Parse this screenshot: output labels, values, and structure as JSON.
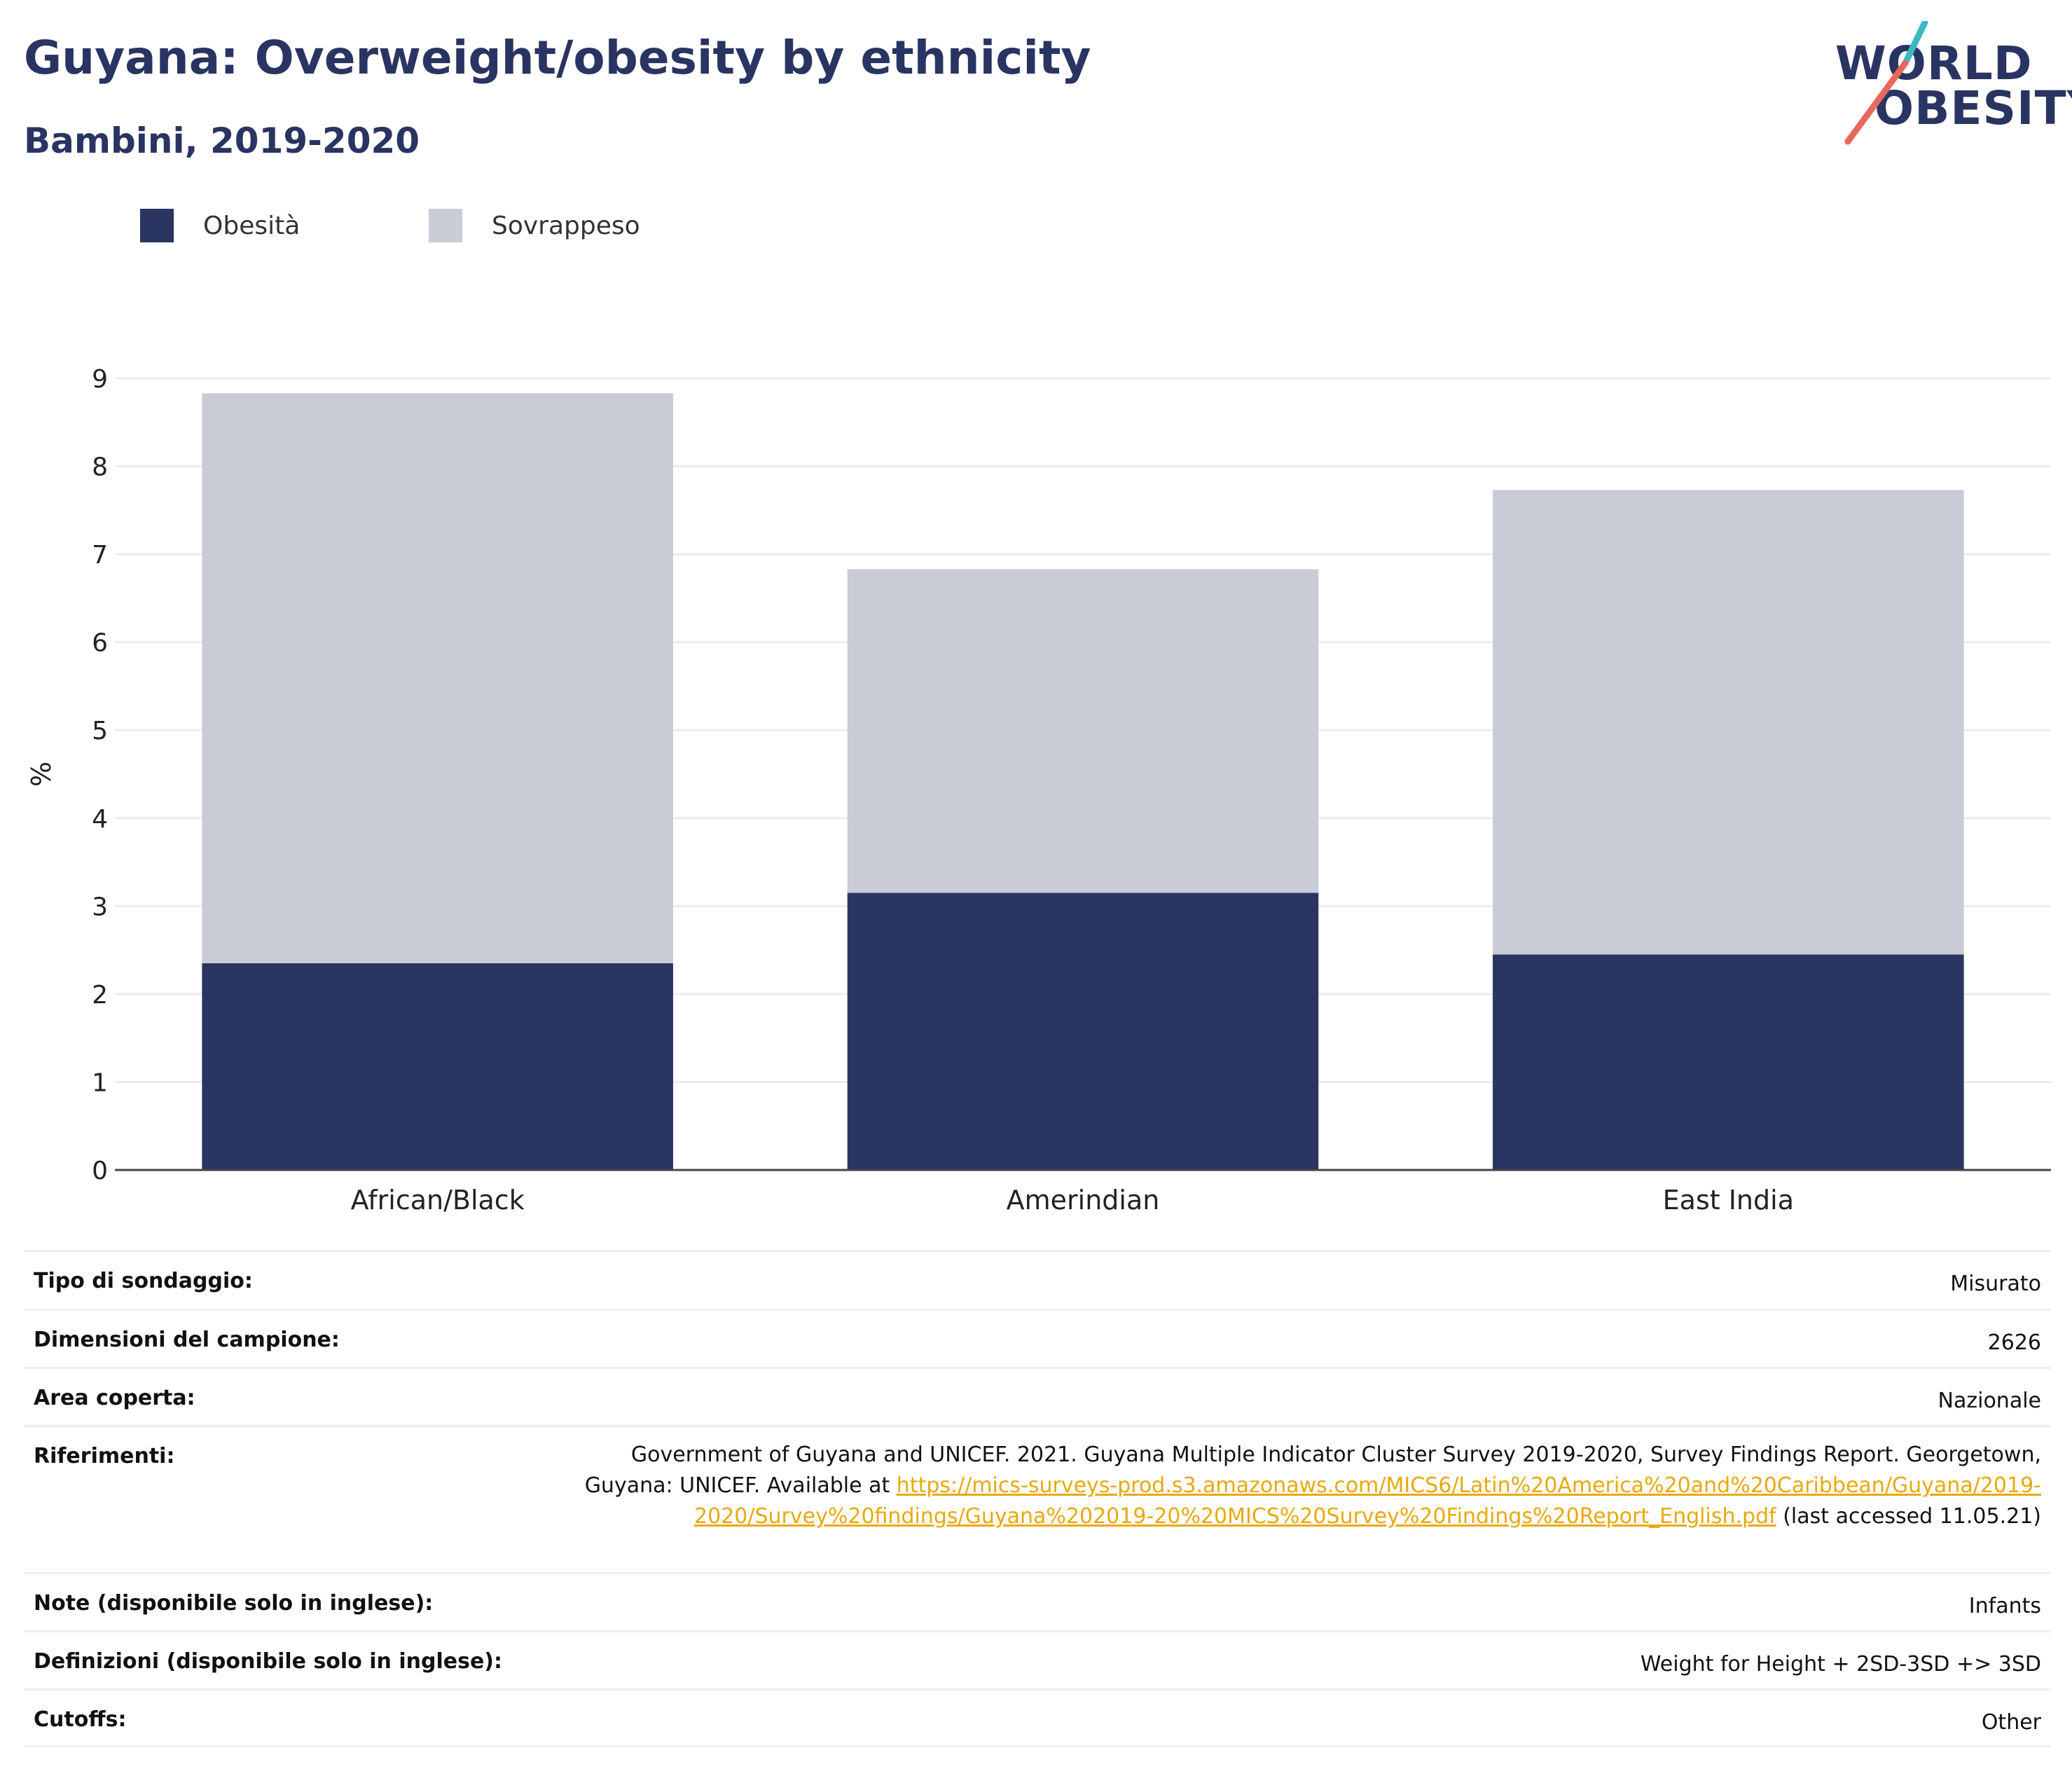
{
  "header": {
    "title": "Guyana: Overweight/obesity by ethnicity",
    "subtitle": "Bambini, 2019-2020"
  },
  "logo": {
    "line1": "WORLD",
    "line2": "OBESITY",
    "slash_colors": [
      "#3bb8c2",
      "#e9685c"
    ]
  },
  "legend": [
    {
      "label": "Obesità",
      "color": "#2a3562"
    },
    {
      "label": "Sovrappeso",
      "color": "#c9cbd6"
    }
  ],
  "chart_data": {
    "type": "bar",
    "stacked": true,
    "categories": [
      "African/Black",
      "Amerindian",
      "East India"
    ],
    "series": [
      {
        "name": "Obesità",
        "color": "#2a3562",
        "values": [
          2.35,
          3.15,
          2.45
        ]
      },
      {
        "name": "Sovrappeso",
        "color": "#c9cbd6",
        "values": [
          6.48,
          3.68,
          5.28
        ]
      }
    ],
    "ylabel": "%",
    "ylim": [
      0,
      9
    ],
    "yticks": [
      0,
      1,
      2,
      3,
      4,
      5,
      6,
      7,
      8,
      9
    ],
    "grid": true,
    "legend_position": "top-left"
  },
  "info": {
    "rows": [
      {
        "label": "Tipo di sondaggio:",
        "value": "Misurato"
      },
      {
        "label": "Dimensioni del campione:",
        "value": "2626"
      },
      {
        "label": "Area coperta:",
        "value": "Nazionale"
      },
      {
        "label": "Riferimenti:",
        "ref_text": "Government of Guyana and UNICEF. 2021. Guyana Multiple Indicator Cluster Survey 2019-2020, Survey Findings Report. Georgetown, Guyana: UNICEF. Available at ",
        "ref_link": "https://mics-surveys-prod.s3.amazonaws.com/MICS6/Latin%20America%20and%20Caribbean/Guyana/2019-2020/Survey%20findings/Guyana%202019-20%20MICS%20Survey%20Findings%20Report_English.pdf",
        "ref_tail": " (last accessed 11.05.21)"
      },
      {
        "label": "Note (disponibile solo in inglese):",
        "value": "Infants"
      },
      {
        "label": "Definizioni (disponibile solo in inglese):",
        "value": "Weight for Height + 2SD-3SD +> 3SD"
      },
      {
        "label": "Cutoffs:",
        "value": "Other"
      }
    ]
  }
}
